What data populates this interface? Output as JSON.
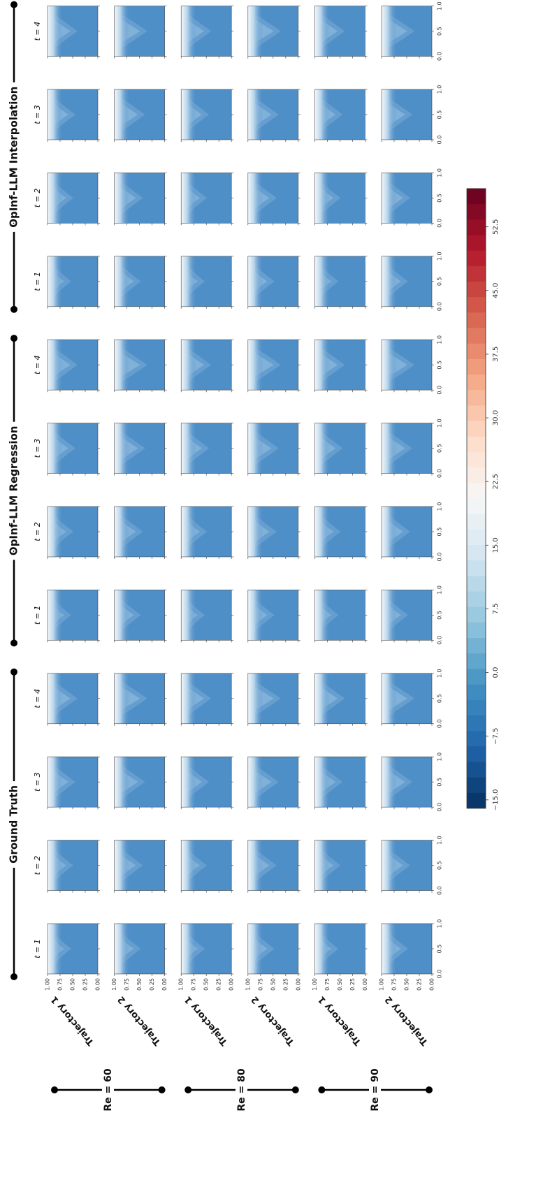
{
  "chart_data": {
    "type": "field-grid",
    "groups": [
      {
        "name": "Ground Truth",
        "times": [
          "t = 1",
          "t = 2",
          "t = 3",
          "t = 4"
        ]
      },
      {
        "name": "OpInf-LLM Regression",
        "times": [
          "t = 1",
          "t = 2",
          "t = 3",
          "t = 4"
        ]
      },
      {
        "name": "OpInf-LLM Interpolation",
        "times": [
          "t = 1",
          "t = 2",
          "t = 3",
          "t = 4"
        ]
      }
    ],
    "rows": [
      {
        "label": "Re = 60",
        "trajectories": [
          "Trajectory 1",
          "Trajectory 2"
        ]
      },
      {
        "label": "Re = 80",
        "trajectories": [
          "Trajectory 1",
          "Trajectory 2"
        ]
      },
      {
        "label": "Re = 90",
        "trajectories": [
          "Trajectory 1",
          "Trajectory 2"
        ]
      }
    ],
    "xlim": [
      0,
      1
    ],
    "xticks": [
      {
        "value": 0,
        "label": "0.0"
      },
      {
        "value": 0.5,
        "label": "0.5"
      },
      {
        "value": 1,
        "label": "1.0"
      }
    ],
    "ylim": [
      0,
      1
    ],
    "yticks": [
      {
        "value": 0,
        "label": "0.00"
      },
      {
        "value": 0.25,
        "label": "0.25"
      },
      {
        "value": 0.5,
        "label": "0.50"
      },
      {
        "value": 0.75,
        "label": "0.75"
      },
      {
        "value": 1,
        "label": "1.00"
      }
    ],
    "colorbar": {
      "lim": [
        -16,
        57
      ],
      "ticks": [
        {
          "value": -15,
          "label": "−15.0"
        },
        {
          "value": -7.5,
          "label": "−7.5"
        },
        {
          "value": 0,
          "label": "0.0"
        },
        {
          "value": 7.5,
          "label": "7.5"
        },
        {
          "value": 15,
          "label": "15.0"
        },
        {
          "value": 22.5,
          "label": "22.5"
        },
        {
          "value": 30,
          "label": "30.0"
        },
        {
          "value": 37.5,
          "label": "37.5"
        },
        {
          "value": 45,
          "label": "45.0"
        },
        {
          "value": 52.5,
          "label": "52.5"
        }
      ],
      "colormap": [
        "#053061",
        "#2166ac",
        "#4393c3",
        "#92c5de",
        "#d1e5f0",
        "#f7f7f7",
        "#fddbc7",
        "#f4a582",
        "#d6604d",
        "#b2182b",
        "#67001f"
      ]
    }
  }
}
